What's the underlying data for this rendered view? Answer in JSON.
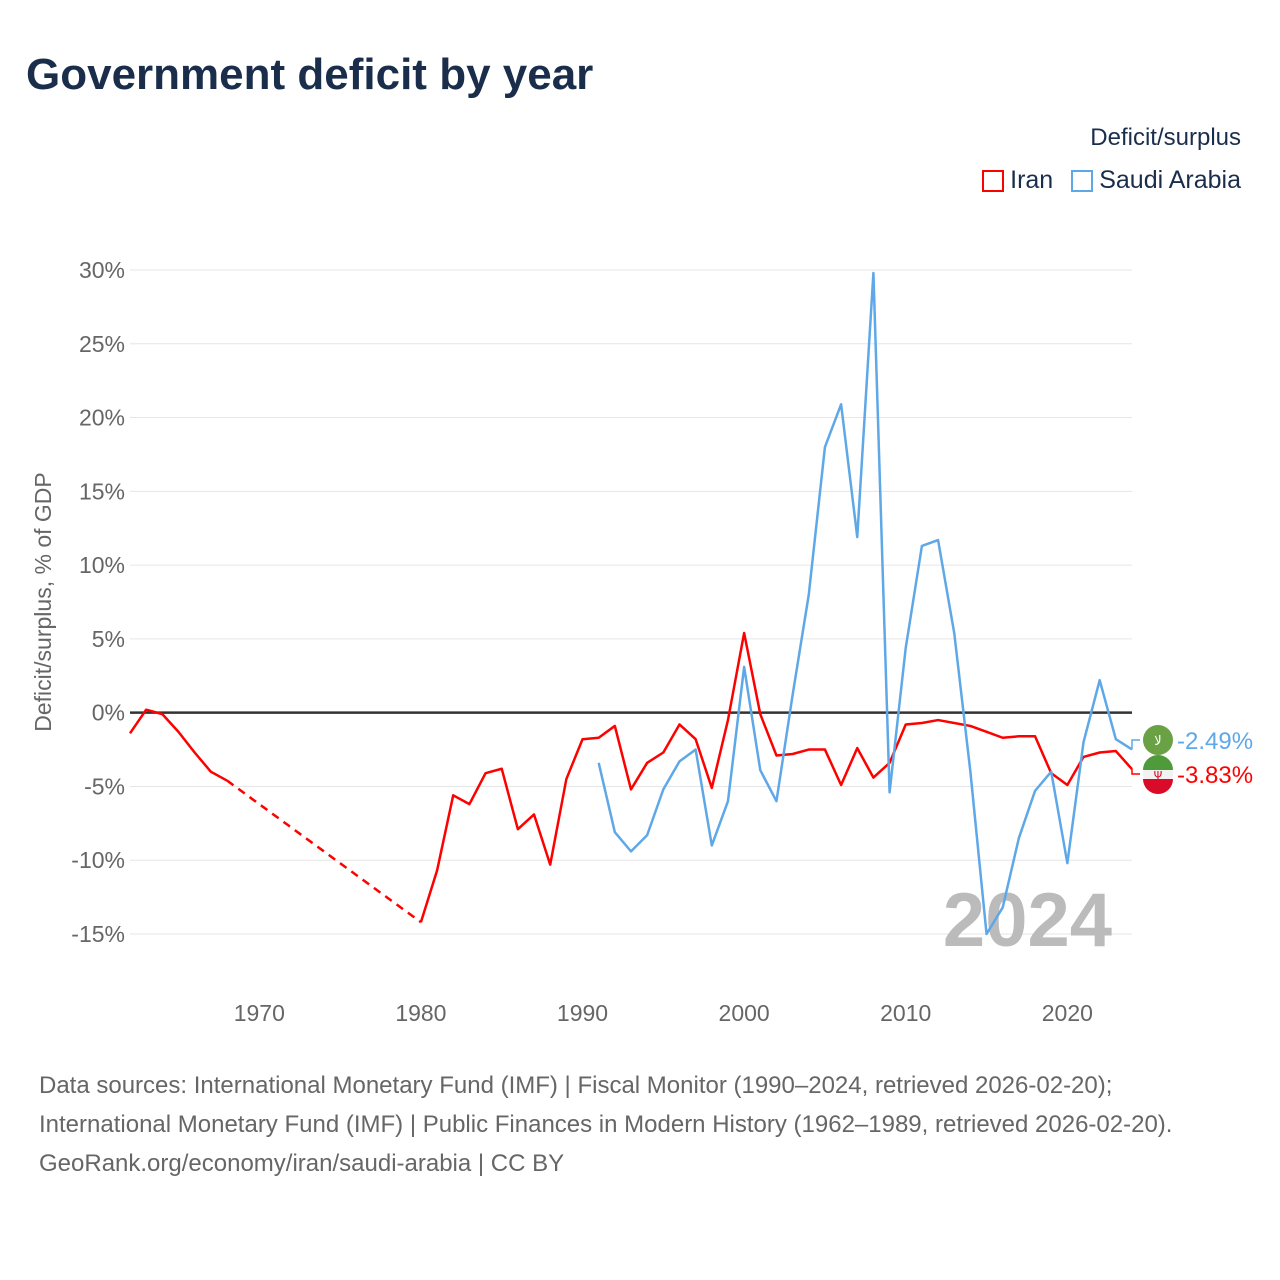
{
  "title": "Government deficit by year",
  "legend": {
    "title": "Deficit/surplus",
    "items": [
      {
        "name": "Iran",
        "color": "#ff0000"
      },
      {
        "name": "Saudi Arabia",
        "color": "#5ea8e8"
      }
    ]
  },
  "year_watermark": "2024",
  "footer": {
    "sources": "Data sources: International Monetary Fund (IMF) | Fiscal Monitor (1990–2024, retrieved 2026-02-20); International Monetary Fund (IMF) | Public Finances in Modern History (1962–1989, retrieved 2026-02-20).",
    "link": "GeoRank.org/economy/iran/saudi-arabia | CC BY"
  },
  "chart_data": {
    "type": "line",
    "title": "Government deficit by year",
    "ylabel": "Deficit/surplus, % of GDP",
    "xlabel": "",
    "xlim": [
      1962,
      2024
    ],
    "ylim": [
      -15,
      30
    ],
    "yticks": [
      -15,
      -10,
      -5,
      0,
      5,
      10,
      15,
      20,
      25,
      30
    ],
    "ytick_labels": [
      "-15%",
      "-10%",
      "-5%",
      "0%",
      "5%",
      "10%",
      "15%",
      "20%",
      "25%",
      "30%"
    ],
    "xticks": [
      1970,
      1980,
      1990,
      2000,
      2010,
      2020
    ],
    "xtick_labels": [
      "1970",
      "1980",
      "1990",
      "2000",
      "2010",
      "2020"
    ],
    "grid": true,
    "legend_position": "top-right",
    "series": [
      {
        "name": "Iran",
        "color": "#ff0000",
        "end_label": "-3.83%",
        "x": [
          1962,
          1963,
          1964,
          1965,
          1966,
          1967,
          1968,
          1980,
          1981,
          1982,
          1983,
          1984,
          1985,
          1986,
          1987,
          1988,
          1989,
          1990,
          1991,
          1992,
          1993,
          1994,
          1995,
          1996,
          1997,
          1998,
          1999,
          2000,
          2001,
          2002,
          2003,
          2004,
          2005,
          2006,
          2007,
          2008,
          2009,
          2010,
          2011,
          2012,
          2013,
          2014,
          2015,
          2016,
          2017,
          2018,
          2019,
          2020,
          2021,
          2022,
          2023,
          2024
        ],
        "y": [
          -1.4,
          0.2,
          -0.1,
          -1.3,
          -2.7,
          -4.0,
          -4.6,
          -14.2,
          -10.7,
          -5.6,
          -6.2,
          -4.1,
          -3.8,
          -7.9,
          -6.9,
          -10.3,
          -4.5,
          -1.8,
          -1.7,
          -0.9,
          -5.2,
          -3.4,
          -2.7,
          -0.8,
          -1.8,
          -5.1,
          -0.5,
          5.4,
          -0.1,
          -2.9,
          -2.8,
          -2.5,
          -2.5,
          -4.9,
          -2.4,
          -4.4,
          -3.4,
          -0.8,
          -0.7,
          -0.5,
          -0.7,
          -0.9,
          -1.3,
          -1.7,
          -1.6,
          -1.6,
          -4.1,
          -4.9,
          -3.0,
          -2.7,
          -2.6,
          -3.83
        ]
      },
      {
        "name": "Saudi Arabia",
        "color": "#5ea8e8",
        "end_label": "-2.49%",
        "x": [
          1991,
          1992,
          1993,
          1994,
          1995,
          1996,
          1997,
          1998,
          1999,
          2000,
          2001,
          2002,
          2003,
          2004,
          2005,
          2006,
          2007,
          2008,
          2009,
          2010,
          2011,
          2012,
          2013,
          2014,
          2015,
          2016,
          2017,
          2018,
          2019,
          2020,
          2021,
          2022,
          2023,
          2024
        ],
        "y": [
          -3.4,
          -8.1,
          -9.4,
          -8.3,
          -5.2,
          -3.3,
          -2.5,
          -9.0,
          -6.0,
          3.1,
          -3.9,
          -6.0,
          1.2,
          8.0,
          18.0,
          20.9,
          11.9,
          29.8,
          -5.4,
          4.4,
          11.3,
          11.7,
          5.4,
          -4.0,
          -15.0,
          -13.2,
          -8.5,
          -5.3,
          -4.0,
          -10.2,
          -2.0,
          2.2,
          -1.8,
          -2.49
        ]
      }
    ]
  }
}
